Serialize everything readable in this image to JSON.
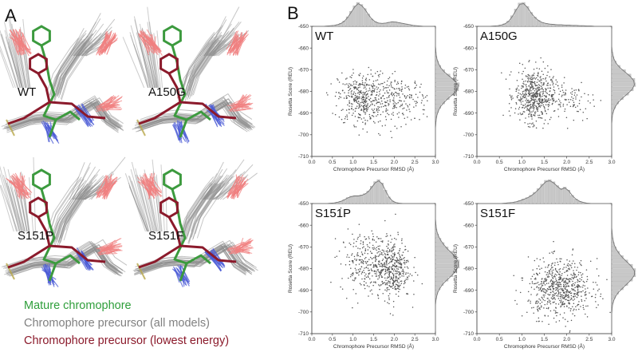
{
  "figure": {
    "panel_a_letter": "A",
    "panel_b_letter": "B",
    "variants": [
      "WT",
      "A150G",
      "S151P",
      "S151F"
    ],
    "legend": [
      {
        "label": "Mature chromophore",
        "color": "#2e9e3a"
      },
      {
        "label": "Chromophore precursor (all models)",
        "color": "#808080"
      },
      {
        "label": "Chromophore precursor (lowest energy)",
        "color": "#8b1a2b"
      }
    ],
    "colors": {
      "mature": "#3c9a3e",
      "precursor_all": "#8e8e8e",
      "lowest_energy": "#8b1a2b",
      "oxygen": "#f08080",
      "nitrogen": "#4b5bd6",
      "sulfur": "#b8a84a",
      "points": "#555555",
      "hist": "#c8c8c8"
    }
  },
  "chart_data": [
    {
      "type": "scatter",
      "title": "WT",
      "xlabel": "Chromophore Precursor RMSD (Å)",
      "ylabel": "Rosetta Score (REU)",
      "xlim": [
        0.0,
        3.0
      ],
      "ylim": [
        -710,
        -650
      ],
      "xticks": [
        "0.0",
        "0.5",
        "1.0",
        "1.5",
        "2.0",
        "2.5",
        "3.0"
      ],
      "yticks": [
        "-650",
        "-660",
        "-670",
        "-680",
        "-690",
        "-700",
        "-710"
      ],
      "clusters": [
        {
          "x_mean": 1.2,
          "x_sd": 0.28,
          "y_mean": -683,
          "y_sd": 6,
          "n": 380
        },
        {
          "x_mean": 2.1,
          "x_sd": 0.35,
          "y_mean": -684,
          "y_sd": 5.5,
          "n": 220
        }
      ],
      "top_hist": [
        0,
        0,
        0,
        0,
        1,
        2,
        3,
        5,
        9,
        16,
        28,
        44,
        60,
        70,
        64,
        52,
        36,
        22,
        14,
        10,
        9,
        10,
        12,
        14,
        13,
        11,
        9,
        7,
        5,
        3,
        2,
        1,
        0,
        0,
        0,
        0
      ],
      "right_hist": [
        0,
        0,
        0,
        0,
        0,
        1,
        2,
        4,
        8,
        14,
        24,
        38,
        52,
        62,
        60,
        50,
        36,
        24,
        14,
        8,
        4,
        2,
        1,
        0,
        0,
        0,
        0,
        0,
        0,
        0
      ]
    },
    {
      "type": "scatter",
      "title": "A150G",
      "xlabel": "Chromophore Precursor RMSD (Å)",
      "ylabel": "Rosetta Score (REU)",
      "xlim": [
        0.0,
        3.0
      ],
      "ylim": [
        -710,
        -650
      ],
      "xticks": [
        "0.0",
        "0.5",
        "1.0",
        "1.5",
        "2.0",
        "2.5",
        "3.0"
      ],
      "yticks": [
        "-650",
        "-660",
        "-670",
        "-680",
        "-690",
        "-700",
        "-710"
      ],
      "clusters": [
        {
          "x_mean": 1.25,
          "x_sd": 0.2,
          "y_mean": -682,
          "y_sd": 6,
          "n": 480
        },
        {
          "x_mean": 1.9,
          "x_sd": 0.4,
          "y_mean": -683,
          "y_sd": 5.5,
          "n": 150
        }
      ],
      "top_hist": [
        0,
        0,
        0,
        0,
        1,
        2,
        4,
        8,
        16,
        32,
        52,
        70,
        72,
        60,
        42,
        28,
        18,
        12,
        9,
        7,
        6,
        5,
        5,
        4,
        4,
        3,
        3,
        2,
        2,
        1,
        1,
        0,
        0,
        0,
        0,
        0
      ],
      "right_hist": [
        0,
        0,
        0,
        0,
        0,
        1,
        3,
        6,
        12,
        22,
        36,
        50,
        60,
        62,
        56,
        44,
        30,
        18,
        10,
        5,
        2,
        1,
        0,
        0,
        0,
        0,
        0,
        0,
        0,
        0
      ]
    },
    {
      "type": "scatter",
      "title": "S151P",
      "xlabel": "Chromophore Precursor RMSD (Å)",
      "ylabel": "Rosetta Score (REU)",
      "xlim": [
        0.0,
        3.0
      ],
      "ylim": [
        -710,
        -650
      ],
      "xticks": [
        "0.0",
        "0.5",
        "1.0",
        "1.5",
        "2.0",
        "2.5",
        "3.0"
      ],
      "yticks": [
        "-650",
        "-660",
        "-670",
        "-680",
        "-690",
        "-700",
        "-710"
      ],
      "clusters": [
        {
          "x_mean": 1.3,
          "x_sd": 0.3,
          "y_mean": -677,
          "y_sd": 7,
          "n": 260
        },
        {
          "x_mean": 1.95,
          "x_sd": 0.22,
          "y_mean": -680,
          "y_sd": 7,
          "n": 420
        }
      ],
      "top_hist": [
        0,
        0,
        0,
        0,
        0,
        1,
        2,
        4,
        7,
        12,
        18,
        22,
        24,
        24,
        26,
        30,
        38,
        52,
        66,
        72,
        62,
        40,
        20,
        8,
        3,
        1,
        0,
        0,
        0,
        0,
        0,
        0,
        0,
        0,
        0,
        0
      ],
      "right_hist": [
        0,
        0,
        0,
        0,
        1,
        2,
        4,
        8,
        14,
        22,
        32,
        44,
        54,
        60,
        60,
        54,
        44,
        32,
        20,
        12,
        6,
        3,
        1,
        0,
        0,
        0,
        0,
        0,
        0,
        0
      ]
    },
    {
      "type": "scatter",
      "title": "S151F",
      "xlabel": "Chromophore Precursor RMSD (Å)",
      "ylabel": "Rosetta Score (REU)",
      "xlim": [
        0.0,
        3.0
      ],
      "ylim": [
        -710,
        -650
      ],
      "xticks": [
        "0.0",
        "0.5",
        "1.0",
        "1.5",
        "2.0",
        "2.5",
        "3.0"
      ],
      "yticks": [
        "-650",
        "-660",
        "-670",
        "-680",
        "-690",
        "-700",
        "-710"
      ],
      "clusters": [
        {
          "x_mean": 1.85,
          "x_sd": 0.35,
          "y_mean": -689,
          "y_sd": 6.5,
          "n": 650
        }
      ],
      "top_hist": [
        0,
        0,
        0,
        0,
        0,
        0,
        0,
        1,
        2,
        3,
        5,
        8,
        12,
        16,
        22,
        30,
        40,
        52,
        62,
        64,
        58,
        48,
        40,
        44,
        36,
        22,
        12,
        6,
        3,
        1,
        0,
        0,
        0,
        0,
        0,
        0
      ],
      "right_hist": [
        0,
        0,
        0,
        0,
        0,
        0,
        1,
        2,
        4,
        7,
        12,
        20,
        30,
        42,
        54,
        62,
        62,
        54,
        42,
        30,
        18,
        10,
        5,
        2,
        1,
        0,
        0,
        0,
        0,
        0
      ]
    }
  ]
}
